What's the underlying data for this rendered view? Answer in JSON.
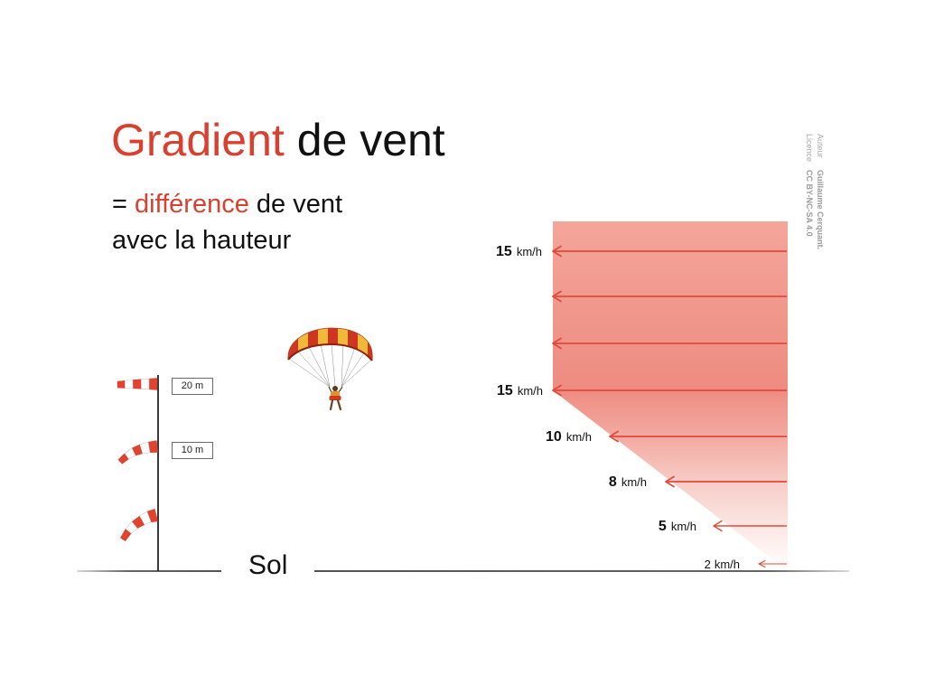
{
  "slide": {
    "title": {
      "highlight": "Gradient",
      "rest": "de vent"
    },
    "subtitle": {
      "line1_prefix": "=",
      "line1_highlight": "différence",
      "line1_suffix": "de vent",
      "line2": "avec la hauteur"
    },
    "ground_label": "Sol",
    "credits": {
      "author_label": "Auteur",
      "author_name": "Guillaume Cerquant.",
      "license_label": "Licence",
      "license_name": "CC BY-NC-SA 4.0"
    }
  },
  "windsock_mast": {
    "height_labels": [
      "20 m",
      "10 m"
    ]
  },
  "wind_profile": {
    "arrows": [
      {
        "value": "15",
        "unit": "km/h"
      },
      {},
      {},
      {
        "value": "15",
        "unit": "km/h"
      },
      {
        "value": "10",
        "unit": "km/h"
      },
      {
        "value": "8",
        "unit": "km/h"
      },
      {
        "value": "5",
        "unit": "km/h"
      },
      {
        "value": "2",
        "unit": "km/h"
      }
    ]
  },
  "colors": {
    "accent_red": "#d8412f",
    "arrow_red": "#e04a3b",
    "fill_top": "#f4a59a",
    "fill_mid": "#ee8c81",
    "credits_gray": "#a9a9a9"
  }
}
